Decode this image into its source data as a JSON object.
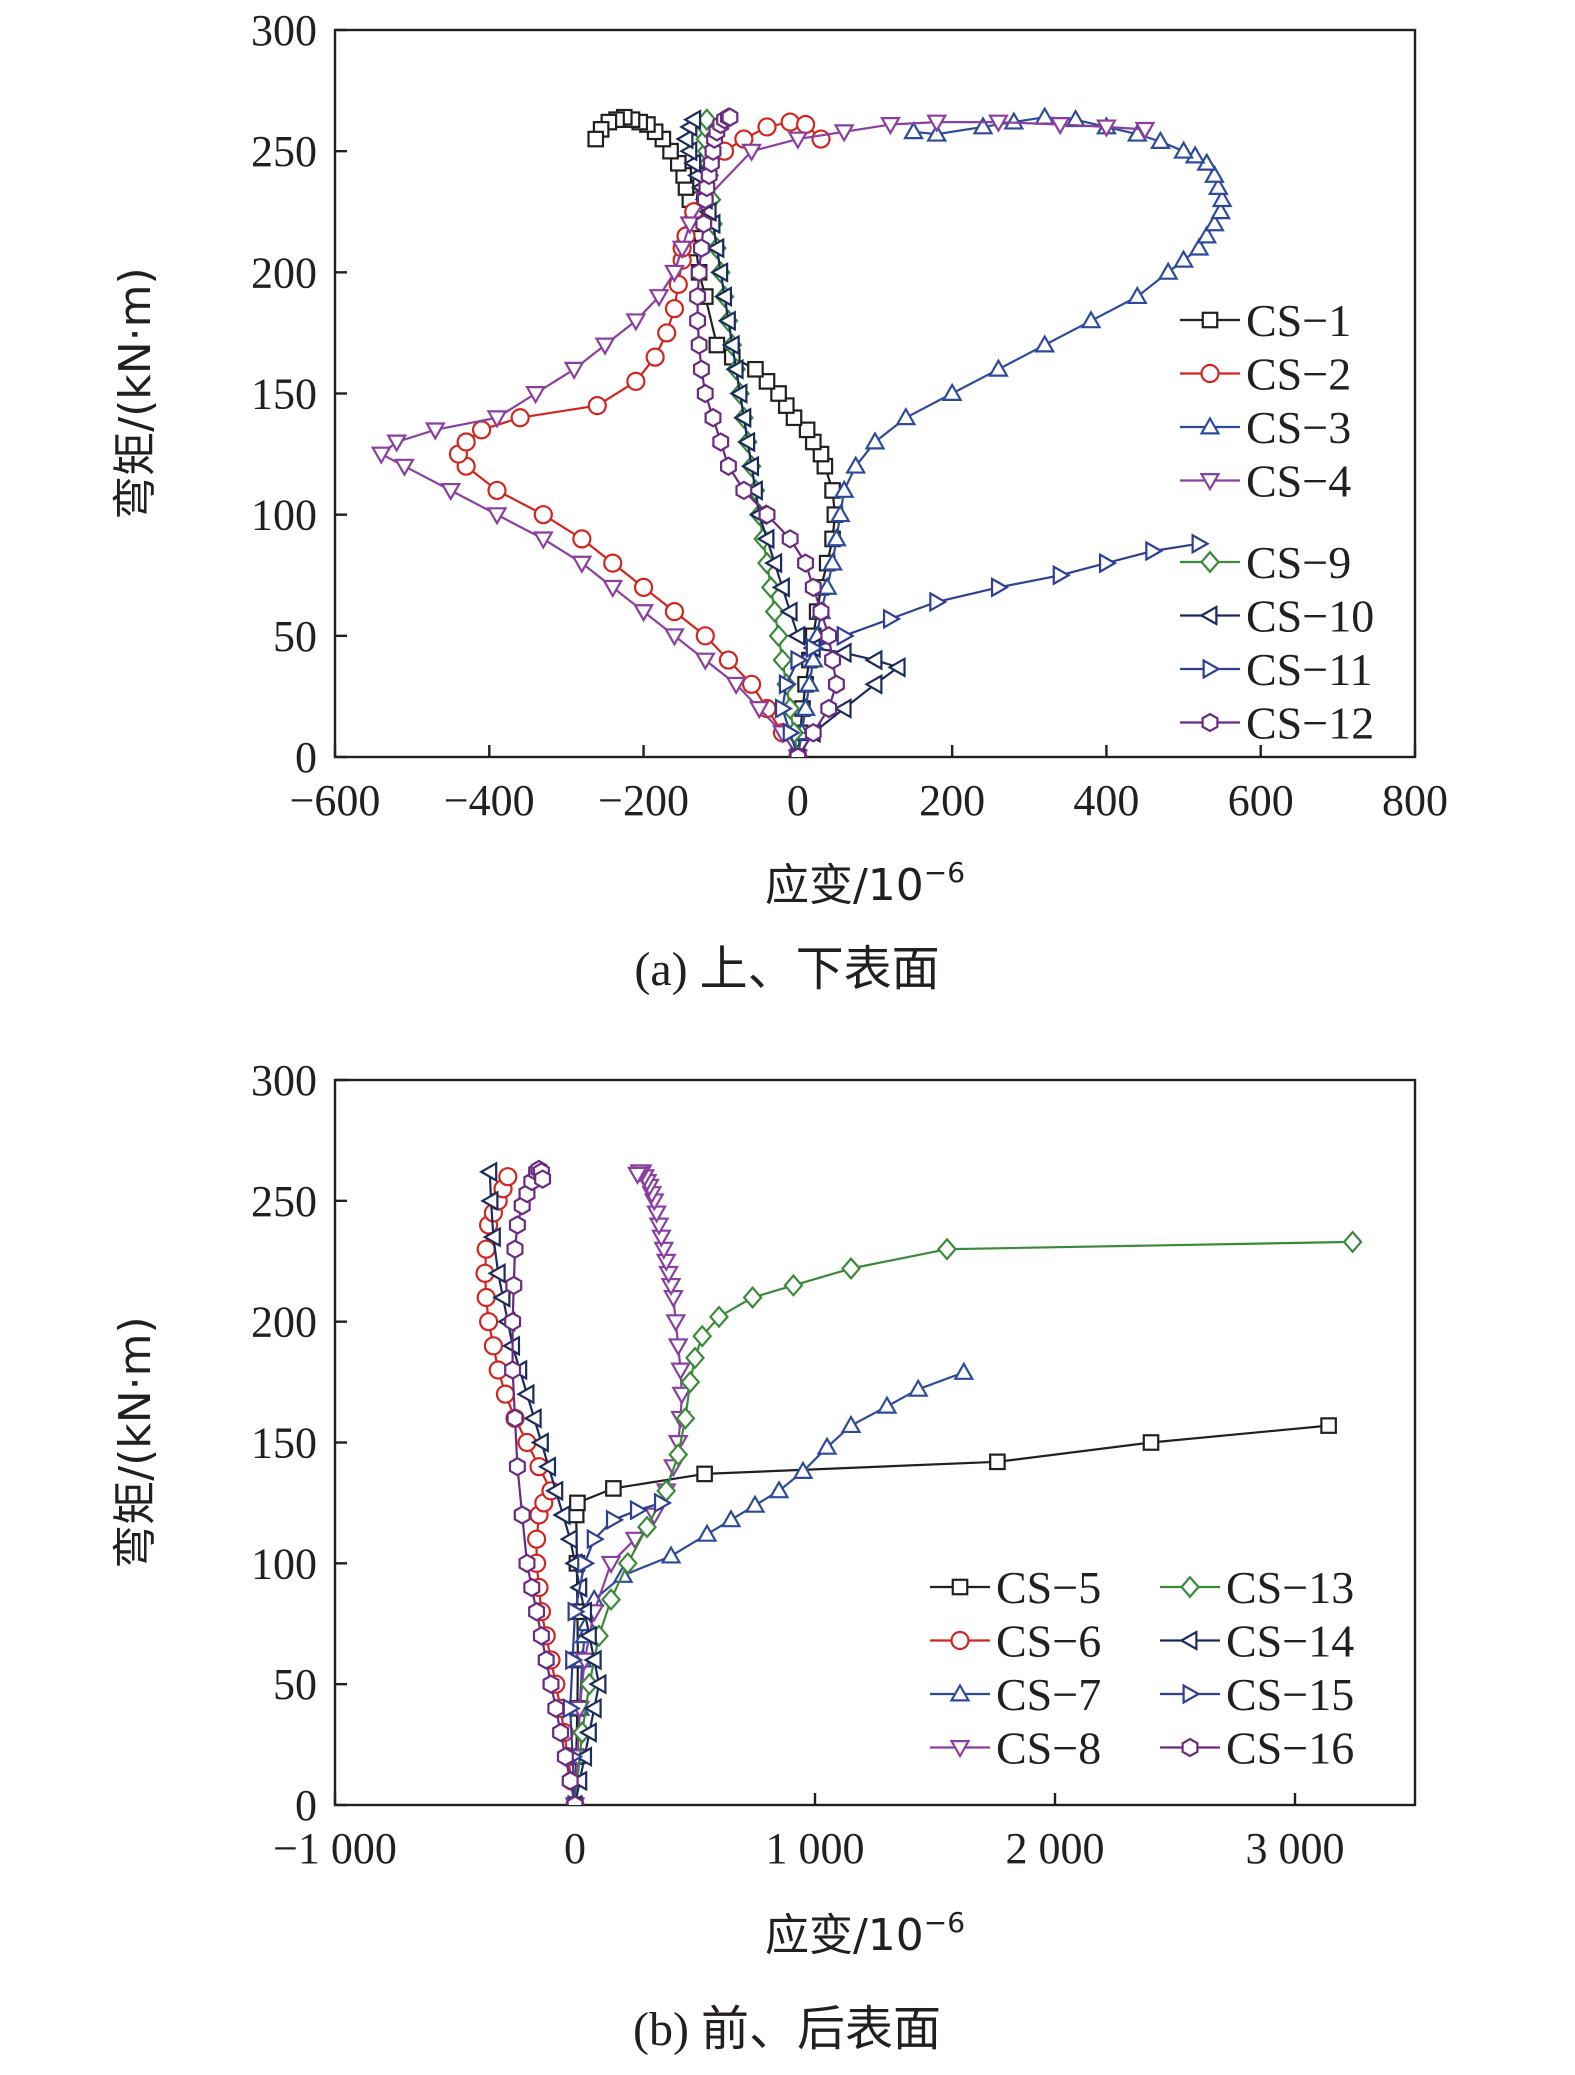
{
  "chart_data": [
    {
      "type": "line",
      "caption": "(a) 上、下表面",
      "xlabel": "应变/10",
      "xlabel_sup": "−6",
      "ylabel": "弯矩/(kN·m)",
      "xlim": [
        -600,
        800
      ],
      "ylim": [
        0,
        300
      ],
      "xticks": [
        -600,
        -400,
        -200,
        0,
        200,
        400,
        600,
        800
      ],
      "xtick_labels": [
        "−600",
        "−400",
        "−200",
        "0",
        "200",
        "400",
        "600",
        "800"
      ],
      "yticks": [
        0,
        50,
        100,
        150,
        200,
        250,
        300
      ],
      "ytick_labels": [
        "0",
        "50",
        "100",
        "150",
        "200",
        "250",
        "300"
      ],
      "legend_position": "right",
      "series": [
        {
          "name": "CS−1",
          "color": "#231f20",
          "marker": "square",
          "x": [
            0,
            3,
            6,
            10,
            15,
            20,
            25,
            30,
            38,
            45,
            48,
            45,
            35,
            30,
            20,
            12,
            -5,
            -15,
            -25,
            -40,
            -55,
            -85,
            -105,
            -120,
            -128,
            -132,
            -136,
            -140,
            -145,
            -148,
            -155,
            -165,
            -175,
            -185,
            -195,
            -205,
            -215,
            -225,
            -235,
            -245,
            -255,
            -262
          ],
          "y": [
            0,
            10,
            20,
            30,
            40,
            50,
            60,
            70,
            80,
            90,
            100,
            110,
            120,
            125,
            130,
            135,
            140,
            145,
            150,
            155,
            160,
            165,
            170,
            190,
            200,
            210,
            220,
            230,
            235,
            240,
            245,
            250,
            255,
            258,
            261,
            262,
            263,
            264,
            263,
            262,
            259,
            255
          ]
        },
        {
          "name": "CS−2",
          "color": "#d1261f",
          "marker": "circle",
          "x": [
            0,
            -20,
            -40,
            -60,
            -90,
            -120,
            -160,
            -200,
            -240,
            -280,
            -330,
            -390,
            -430,
            -440,
            -430,
            -410,
            -360,
            -260,
            -210,
            -185,
            -170,
            -160,
            -155,
            -150,
            -150,
            -145,
            -135,
            -120,
            -95,
            -70,
            -40,
            -10,
            10,
            30
          ],
          "y": [
            0,
            10,
            20,
            30,
            40,
            50,
            60,
            70,
            80,
            90,
            100,
            110,
            120,
            125,
            130,
            135,
            140,
            145,
            155,
            165,
            175,
            185,
            195,
            205,
            210,
            215,
            225,
            240,
            250,
            255,
            260,
            262,
            261,
            255
          ]
        },
        {
          "name": "CS−3",
          "color": "#2e4b9b",
          "marker": "triangle-up",
          "x": [
            0,
            5,
            10,
            15,
            20,
            25,
            30,
            38,
            45,
            50,
            55,
            60,
            75,
            100,
            140,
            200,
            260,
            320,
            380,
            440,
            480,
            500,
            520,
            530,
            540,
            548,
            550,
            545,
            540,
            530,
            515,
            500,
            470,
            440,
            400,
            360,
            320,
            280,
            240,
            180,
            150
          ],
          "y": [
            0,
            10,
            20,
            30,
            40,
            50,
            60,
            70,
            80,
            90,
            100,
            110,
            120,
            130,
            140,
            150,
            160,
            170,
            180,
            190,
            200,
            205,
            210,
            215,
            220,
            225,
            230,
            235,
            240,
            245,
            248,
            250,
            254,
            257,
            260,
            263,
            264,
            262,
            260,
            257,
            258
          ]
        },
        {
          "name": "CS−4",
          "color": "#8a3fa0",
          "marker": "triangle-down",
          "x": [
            0,
            -20,
            -50,
            -80,
            -120,
            -160,
            -200,
            -240,
            -280,
            -330,
            -390,
            -450,
            -510,
            -540,
            -520,
            -470,
            -390,
            -340,
            -290,
            -250,
            -210,
            -180,
            -160,
            -150,
            -140,
            -120,
            -60,
            0,
            60,
            120,
            180,
            260,
            340,
            400,
            450
          ],
          "y": [
            0,
            10,
            20,
            30,
            40,
            50,
            60,
            70,
            80,
            90,
            100,
            110,
            120,
            125,
            130,
            135,
            140,
            150,
            160,
            170,
            180,
            190,
            200,
            210,
            220,
            230,
            250,
            255,
            258,
            261,
            262,
            262,
            261,
            260,
            259
          ]
        },
        {
          "name": "CS−9",
          "color": "#3a8a3a",
          "marker": "diamond",
          "x": [
            0,
            -5,
            -10,
            -15,
            -20,
            -25,
            -30,
            -35,
            -40,
            -45,
            -50,
            -55,
            -60,
            -65,
            -70,
            -75,
            -80,
            -85,
            -90,
            -95,
            -100,
            -105,
            -110,
            -112,
            -115,
            -116,
            -118,
            -120,
            -120,
            -118
          ],
          "y": [
            0,
            10,
            20,
            30,
            40,
            50,
            60,
            70,
            80,
            90,
            100,
            110,
            120,
            130,
            140,
            150,
            160,
            170,
            180,
            190,
            200,
            210,
            220,
            230,
            240,
            245,
            250,
            255,
            260,
            263
          ]
        },
        {
          "name": "CS−10",
          "color": "#1c2a5c",
          "marker": "triangle-left",
          "x": [
            0,
            20,
            60,
            100,
            130,
            100,
            60,
            20,
            0,
            -10,
            -20,
            -30,
            -40,
            -50,
            -55,
            -60,
            -65,
            -70,
            -75,
            -80,
            -85,
            -90,
            -95,
            -100,
            -105,
            -110,
            -115,
            -120,
            -125,
            -130,
            -135,
            -140,
            -145,
            -140,
            -135
          ],
          "y": [
            0,
            10,
            20,
            30,
            37,
            40,
            43,
            45,
            50,
            60,
            70,
            80,
            90,
            100,
            110,
            120,
            130,
            140,
            150,
            160,
            170,
            180,
            190,
            200,
            210,
            220,
            225,
            230,
            235,
            240,
            245,
            250,
            255,
            260,
            263
          ]
        },
        {
          "name": "CS−11",
          "color": "#2e3f94",
          "marker": "triangle-right",
          "x": [
            0,
            -10,
            -20,
            -15,
            0,
            20,
            60,
            120,
            180,
            260,
            340,
            400,
            460,
            520
          ],
          "y": [
            0,
            10,
            20,
            30,
            40,
            45,
            50,
            57,
            64,
            70,
            75,
            80,
            85,
            88
          ]
        },
        {
          "name": "CS−12",
          "color": "#6a2a80",
          "marker": "hexagon",
          "x": [
            0,
            20,
            40,
            50,
            45,
            40,
            30,
            20,
            10,
            -10,
            -40,
            -70,
            -90,
            -100,
            -110,
            -120,
            -125,
            -128,
            -130,
            -130,
            -128,
            -125,
            -122,
            -120,
            -118,
            -115,
            -112,
            -110,
            -108,
            -105,
            -100,
            -95,
            -90,
            -88
          ],
          "y": [
            0,
            10,
            20,
            30,
            40,
            50,
            60,
            70,
            80,
            90,
            100,
            110,
            120,
            130,
            140,
            150,
            160,
            170,
            180,
            190,
            200,
            210,
            220,
            230,
            235,
            240,
            245,
            250,
            255,
            258,
            261,
            263,
            264,
            264
          ]
        }
      ]
    },
    {
      "type": "line",
      "caption": "(b) 前、后表面",
      "xlabel": "应变/10",
      "xlabel_sup": "−6",
      "ylabel": "弯矩/(kN·m)",
      "xlim": [
        -1000,
        3500
      ],
      "ylim": [
        0,
        300
      ],
      "xticks": [
        -1000,
        0,
        1000,
        2000,
        3000
      ],
      "xtick_labels": [
        "−1 000",
        "0",
        "1 000",
        "2 000",
        "3 000"
      ],
      "yticks": [
        0,
        50,
        100,
        150,
        200,
        250,
        300
      ],
      "ytick_labels": [
        "0",
        "50",
        "100",
        "150",
        "200",
        "250",
        "300"
      ],
      "legend_position": "bottom-right",
      "series": [
        {
          "name": "CS−5",
          "color": "#231f20",
          "marker": "square",
          "x": [
            0,
            5,
            10,
            12,
            10,
            8,
            5,
            10,
            160,
            540,
            1760,
            2400,
            3140
          ],
          "y": [
            0,
            20,
            40,
            60,
            80,
            100,
            120,
            125,
            131,
            137,
            142,
            150,
            157
          ]
        },
        {
          "name": "CS−6",
          "color": "#d1261f",
          "marker": "circle",
          "x": [
            0,
            -15,
            -30,
            -45,
            -60,
            -80,
            -100,
            -120,
            -140,
            -150,
            -160,
            -160,
            -150,
            -130,
            -100,
            -150,
            -200,
            -250,
            -290,
            -320,
            -340,
            -360,
            -370,
            -375,
            -370,
            -360,
            -340,
            -320,
            -300,
            -280
          ],
          "y": [
            0,
            10,
            20,
            30,
            40,
            50,
            60,
            70,
            80,
            90,
            100,
            110,
            120,
            125,
            130,
            140,
            150,
            160,
            170,
            180,
            190,
            200,
            210,
            220,
            230,
            240,
            245,
            250,
            255,
            260
          ]
        },
        {
          "name": "CS−7",
          "color": "#2e4b9b",
          "marker": "triangle-up",
          "x": [
            0,
            10,
            20,
            30,
            40,
            50,
            80,
            200,
            400,
            550,
            650,
            750,
            850,
            950,
            1050,
            1150,
            1300,
            1430,
            1620
          ],
          "y": [
            0,
            20,
            40,
            60,
            70,
            75,
            85,
            95,
            103,
            112,
            118,
            124,
            130,
            138,
            148,
            157,
            165,
            172,
            179
          ]
        },
        {
          "name": "CS−8",
          "color": "#8a3fa0",
          "marker": "triangle-down",
          "x": [
            0,
            10,
            20,
            40,
            80,
            150,
            250,
            330,
            380,
            410,
            430,
            440,
            445,
            440,
            430,
            420,
            410,
            400,
            390,
            380,
            370,
            360,
            350,
            340,
            330,
            320,
            310,
            300,
            290,
            280,
            270,
            260
          ],
          "y": [
            0,
            20,
            40,
            60,
            80,
            100,
            110,
            120,
            130,
            140,
            150,
            160,
            170,
            180,
            190,
            200,
            210,
            215,
            220,
            225,
            230,
            235,
            240,
            245,
            250,
            253,
            256,
            258,
            260,
            262,
            262,
            261
          ]
        },
        {
          "name": "CS−13",
          "color": "#3a8a3a",
          "marker": "diamond",
          "x": [
            0,
            30,
            60,
            100,
            150,
            220,
            300,
            380,
            430,
            460,
            480,
            500,
            530,
            600,
            740,
            910,
            1150,
            1550,
            3240
          ],
          "y": [
            0,
            30,
            50,
            70,
            85,
            100,
            115,
            130,
            145,
            160,
            175,
            185,
            194,
            202,
            210,
            215,
            222,
            230,
            233
          ]
        },
        {
          "name": "CS−14",
          "color": "#1c2a5c",
          "marker": "triangle-left",
          "x": [
            0,
            20,
            40,
            60,
            80,
            100,
            80,
            60,
            40,
            20,
            0,
            -20,
            -50,
            -80,
            -110,
            -140,
            -170,
            -200,
            -230,
            -260,
            -280,
            -300,
            -320,
            -340,
            -350,
            -355
          ],
          "y": [
            0,
            10,
            20,
            30,
            40,
            50,
            60,
            70,
            80,
            90,
            100,
            110,
            120,
            130,
            140,
            150,
            160,
            170,
            180,
            190,
            200,
            210,
            220,
            235,
            250,
            262
          ]
        },
        {
          "name": "CS−15",
          "color": "#2e3f94",
          "marker": "triangle-right",
          "x": [
            0,
            -10,
            -20,
            -10,
            0,
            40,
            80,
            160,
            260,
            360
          ],
          "y": [
            0,
            20,
            40,
            60,
            80,
            100,
            110,
            118,
            122,
            125
          ]
        },
        {
          "name": "CS−16",
          "color": "#6a2a80",
          "marker": "hexagon",
          "x": [
            0,
            -20,
            -40,
            -60,
            -80,
            -100,
            -120,
            -140,
            -160,
            -180,
            -200,
            -220,
            -240,
            -250,
            -260,
            -260,
            -255,
            -250,
            -240,
            -220,
            -200,
            -180,
            -160,
            -150,
            -140,
            -135
          ],
          "y": [
            0,
            10,
            20,
            30,
            40,
            50,
            60,
            70,
            80,
            90,
            100,
            120,
            140,
            160,
            180,
            200,
            215,
            230,
            240,
            248,
            253,
            258,
            262,
            263,
            262,
            259
          ]
        }
      ]
    }
  ]
}
